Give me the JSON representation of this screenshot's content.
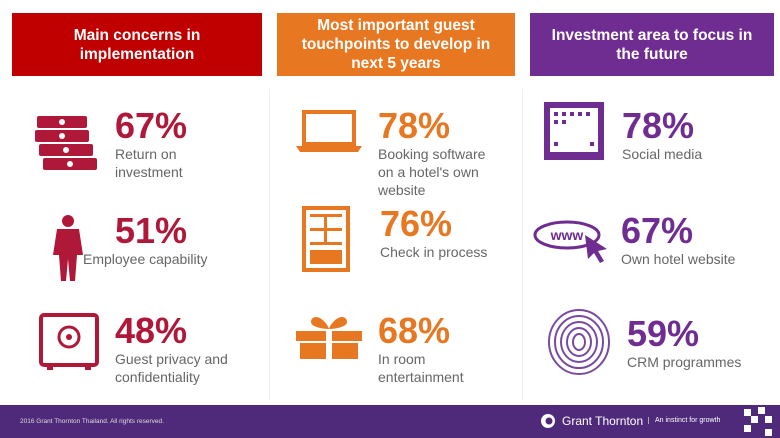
{
  "colors": {
    "red": "#c00000",
    "orange": "#e87722",
    "purple": "#6f2c91",
    "footer": "#4f2a7a"
  },
  "columns": [
    {
      "title": "Main concerns in implementation",
      "items": [
        {
          "icon": "money-stack-icon",
          "value": "67%",
          "label": "Return on investment"
        },
        {
          "icon": "businessman-icon",
          "value": "51%",
          "label": "Employee capability"
        },
        {
          "icon": "safe-icon",
          "value": "48%",
          "label": "Guest privacy and confidentiality"
        }
      ]
    },
    {
      "title": "Most important guest touchpoints to develop in next 5 years",
      "items": [
        {
          "icon": "laptop-icon",
          "value": "78%",
          "label": "Booking software on a hotel's own website"
        },
        {
          "icon": "door-icon",
          "value": "76%",
          "label": "Check in process"
        },
        {
          "icon": "gift-icon",
          "value": "68%",
          "label": "In room entertainment"
        }
      ]
    },
    {
      "title": "Investment area to focus in the future",
      "items": [
        {
          "icon": "tablet-icon",
          "value": "78%",
          "label": "Social media"
        },
        {
          "icon": "www-cursor-icon",
          "value": "67%",
          "label": "Own hotel website"
        },
        {
          "icon": "fingerprint-icon",
          "value": "59%",
          "label": "CRM programmes"
        }
      ]
    }
  ],
  "footer": {
    "copyright": "2016 Grant Thornton Thailand. All rights reserved.",
    "brand": "Grant Thornton",
    "tagline": "An instinct for growth"
  }
}
